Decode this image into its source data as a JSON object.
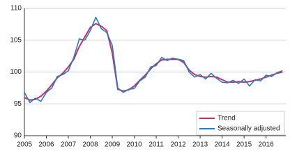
{
  "chart_data": {
    "type": "line",
    "x": [
      2005,
      2005.25,
      2005.5,
      2005.75,
      2006,
      2006.25,
      2006.5,
      2006.75,
      2007,
      2007.25,
      2007.5,
      2007.75,
      2008,
      2008.25,
      2008.5,
      2008.75,
      2009,
      2009.25,
      2009.5,
      2009.75,
      2010,
      2010.25,
      2010.5,
      2010.75,
      2011,
      2011.25,
      2011.5,
      2011.75,
      2012,
      2012.25,
      2012.5,
      2012.75,
      2013,
      2013.25,
      2013.5,
      2013.75,
      2014,
      2014.25,
      2014.5,
      2014.75,
      2015,
      2015.25,
      2015.5,
      2015.75,
      2016,
      2016.25,
      2016.5,
      2016.75
    ],
    "series": [
      {
        "name": "Trend",
        "color": "#d42a6a",
        "values": [
          96,
          95.6,
          95.7,
          96.2,
          97,
          98,
          99.1,
          99.8,
          100.8,
          102,
          104,
          105.5,
          107,
          107.6,
          107.2,
          106.5,
          103,
          97.3,
          97,
          97.2,
          97.8,
          98.7,
          99.5,
          100.5,
          101.3,
          101.9,
          102,
          102,
          102,
          101.5,
          100.3,
          99.6,
          99.3,
          99.2,
          99.3,
          99.2,
          98.8,
          98.4,
          98.4,
          98.5,
          98.4,
          98.5,
          98.7,
          98.9,
          99.2,
          99.5,
          99.8,
          100
        ]
      },
      {
        "name": "Seasonally adjusted",
        "color": "#1f7fc1",
        "values": [
          96.8,
          95.2,
          95.9,
          95.4,
          96.8,
          97.5,
          99.3,
          99.6,
          100.2,
          102.3,
          105.2,
          105,
          106.5,
          108.6,
          106.8,
          106.2,
          104.2,
          97.5,
          96.8,
          97.3,
          97.4,
          98.6,
          99.2,
          100.8,
          101,
          102.3,
          101.8,
          102.2,
          102,
          101.8,
          100,
          99.2,
          99.6,
          98.9,
          99.8,
          99,
          98.4,
          98.3,
          98.7,
          98.2,
          98.9,
          97.8,
          98.8,
          98.6,
          99.5,
          99.3,
          99.9,
          100.2
        ]
      }
    ],
    "xlim": [
      2005,
      2016.9
    ],
    "xticks": [
      2005,
      2006,
      2007,
      2008,
      2009,
      2010,
      2011,
      2012,
      2013,
      2014,
      2015,
      2016
    ],
    "ylim": [
      90,
      110
    ],
    "yticks": [
      90,
      95,
      100,
      105,
      110
    ],
    "grid": true,
    "legend": "lower right"
  }
}
